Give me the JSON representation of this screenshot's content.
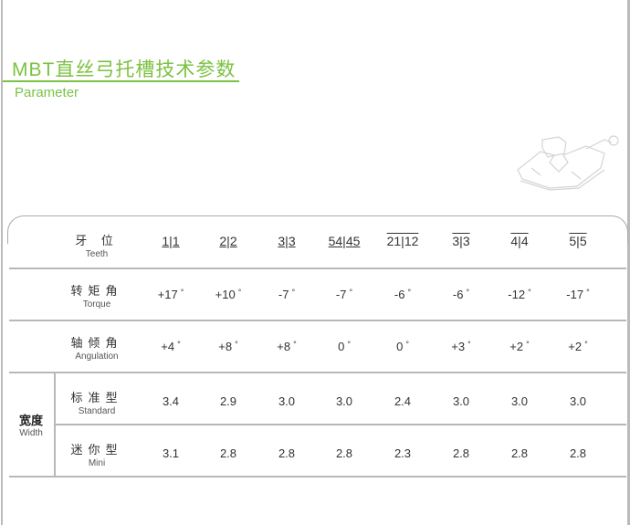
{
  "header": {
    "title": "MBT直丝弓托槽技术参数",
    "subtitle": "Parameter"
  },
  "colors": {
    "accent": "#7cc242",
    "rule": "#b8b8b8"
  },
  "table": {
    "rows": [
      {
        "cn": "牙 位",
        "en": "Teeth",
        "type": "teeth",
        "values": [
          {
            "text": "1|1",
            "mark": "underline"
          },
          {
            "text": "2|2",
            "mark": "underline"
          },
          {
            "text": "3|3",
            "mark": "underline"
          },
          {
            "text": "54|45",
            "mark": "underline"
          },
          {
            "text": "21|12",
            "mark": "overline"
          },
          {
            "text": "3|3",
            "mark": "overline"
          },
          {
            "text": "4|4",
            "mark": "overline"
          },
          {
            "text": "5|5",
            "mark": "overline"
          }
        ]
      },
      {
        "cn": "转矩角",
        "en": "Torque",
        "type": "deg",
        "values": [
          "+17",
          "+10",
          "-7",
          "-7",
          "-6",
          "-6",
          "-12",
          "-17"
        ]
      },
      {
        "cn": "轴倾角",
        "en": "Angulation",
        "type": "deg",
        "values": [
          "+4",
          "+8",
          "+8",
          "0",
          "0",
          "+3",
          "+2",
          "+2"
        ]
      },
      {
        "cn": "标准型",
        "en": "Standard",
        "type": "num",
        "values": [
          "3.4",
          "2.9",
          "3.0",
          "3.0",
          "2.4",
          "3.0",
          "3.0",
          "3.0"
        ]
      },
      {
        "cn": "迷你型",
        "en": "Mini",
        "type": "num",
        "values": [
          "3.1",
          "2.8",
          "2.8",
          "2.8",
          "2.3",
          "2.8",
          "2.8",
          "2.8"
        ]
      }
    ],
    "degree_symbol": "°",
    "group": {
      "cn": "宽度",
      "en": "Width"
    }
  }
}
